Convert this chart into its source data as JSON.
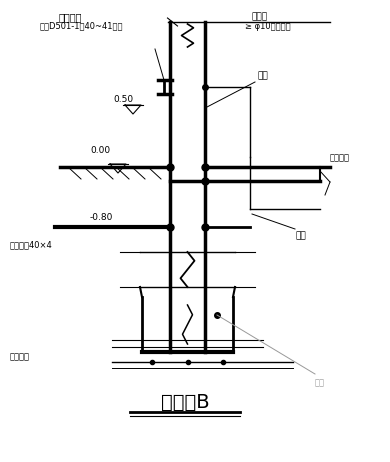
{
  "title": "大样图B",
  "bg_color": "#ffffff",
  "line_color": "#000000",
  "gray_color": "#999999",
  "labels": {
    "test_clip": "测试卡子",
    "see_ref": "参见D501-1第40~41页。",
    "yin_xia_xian": "引下线",
    "requirement": "≥ φ10镀锌圆钢",
    "lv_050": "0.50",
    "zhu_zi": "柱子",
    "di_liang_zhu_jin": "地梁主筋",
    "lv_000": "0.00",
    "di_liang": "地梁",
    "lv_080": "-0.80",
    "bian_gang": "镀锌扁钢40×4",
    "ji_chu_zhu_jin": "基础主筋",
    "ji_chu": "基础"
  }
}
